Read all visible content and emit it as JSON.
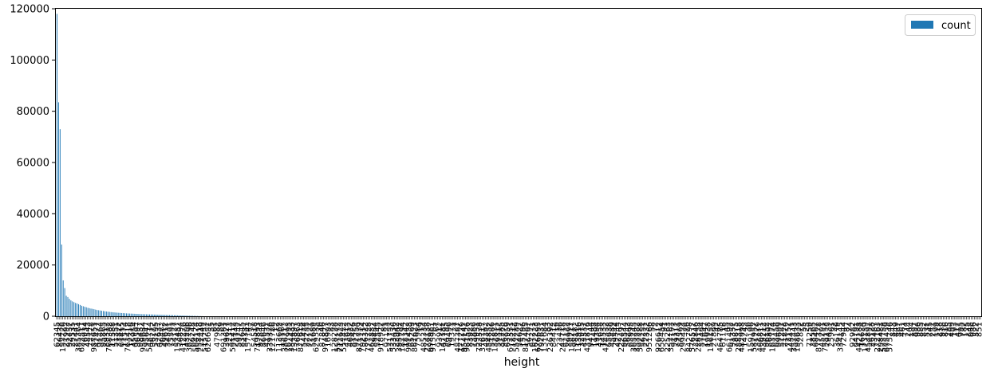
{
  "chart_data": {
    "type": "bar",
    "xlabel": "height",
    "ylabel": "",
    "ylim": [
      0,
      120000
    ],
    "yticks": [
      0,
      20000,
      40000,
      60000,
      80000,
      100000,
      120000
    ],
    "grid": false,
    "legend": {
      "placement": "top-right",
      "entries": [
        "count"
      ]
    },
    "series": [
      {
        "name": "count",
        "color": "#1f77b4",
        "values": [
          118000,
          83500,
          73000,
          28000,
          14000,
          11000,
          8000,
          7500,
          6800,
          6200,
          5800,
          5500,
          5200,
          5000,
          4700,
          4400,
          4100,
          3900,
          3700,
          3500,
          3300,
          3150,
          3000,
          2900,
          2750,
          2600,
          2450,
          2350,
          2250,
          2150,
          2050,
          1950,
          1850,
          1780,
          1700,
          1630,
          1560,
          1500,
          1450,
          1400,
          1350,
          1300,
          1250,
          1210,
          1170,
          1130,
          1090,
          1060,
          1030,
          1000,
          970,
          940,
          910,
          880,
          850,
          820,
          800,
          780,
          760,
          740,
          720,
          700,
          680,
          660,
          640,
          620,
          600,
          580,
          560,
          540,
          520,
          500,
          480,
          460,
          440,
          420,
          400,
          380,
          360,
          340,
          320,
          300,
          280,
          260,
          240,
          220,
          200,
          180,
          160,
          140,
          120,
          100,
          80,
          60,
          40
        ]
      }
    ]
  }
}
